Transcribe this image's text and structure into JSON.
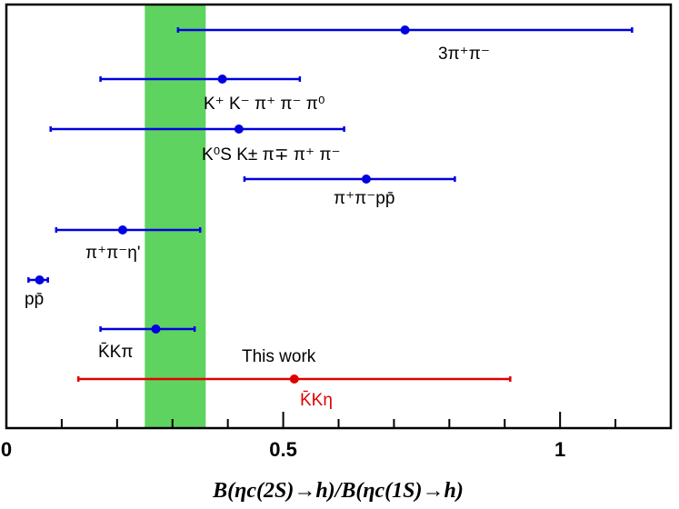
{
  "chart_data": {
    "type": "scatter",
    "xlim": [
      0,
      1.2
    ],
    "grid": false,
    "xlabel": "B(ηc(2S)→h)/B(ηc(1S)→h)",
    "x_ticks": [
      {
        "value": 0,
        "label": "0"
      },
      {
        "value": 0.5,
        "label": "0.5"
      },
      {
        "value": 1,
        "label": "1"
      }
    ],
    "band": {
      "xmin": 0.25,
      "xmax": 0.36,
      "color": "#5fd35f"
    },
    "series": [
      {
        "label": "3π⁺π⁻",
        "x": 0.72,
        "xerr_low": 0.41,
        "xerr_high": 0.41,
        "color": "#0000e0"
      },
      {
        "label": "K⁺ K⁻ π⁺ π⁻ π⁰",
        "x": 0.39,
        "xerr_low": 0.22,
        "xerr_high": 0.14,
        "color": "#0000e0"
      },
      {
        "label": "K⁰S K± π∓ π⁺ π⁻",
        "x": 0.42,
        "xerr_low": 0.34,
        "xerr_high": 0.19,
        "color": "#0000e0"
      },
      {
        "label": "π⁺π⁻pp̄",
        "x": 0.65,
        "xerr_low": 0.22,
        "xerr_high": 0.16,
        "color": "#0000e0"
      },
      {
        "label": "π⁺π⁻η'",
        "x": 0.21,
        "xerr_low": 0.12,
        "xerr_high": 0.14,
        "color": "#0000e0"
      },
      {
        "label": "pp̄",
        "x": 0.06,
        "xerr_low": 0.02,
        "xerr_high": 0.015,
        "color": "#0000e0"
      },
      {
        "label": "K̄Kπ",
        "x": 0.27,
        "xerr_low": 0.1,
        "xerr_high": 0.07,
        "color": "#0000e0"
      },
      {
        "label": "K̄Kη",
        "x": 0.52,
        "xerr_low": 0.39,
        "xerr_high": 0.39,
        "color": "#e00000"
      }
    ],
    "annotation": {
      "text": "This   work",
      "color": "#e00000"
    }
  }
}
